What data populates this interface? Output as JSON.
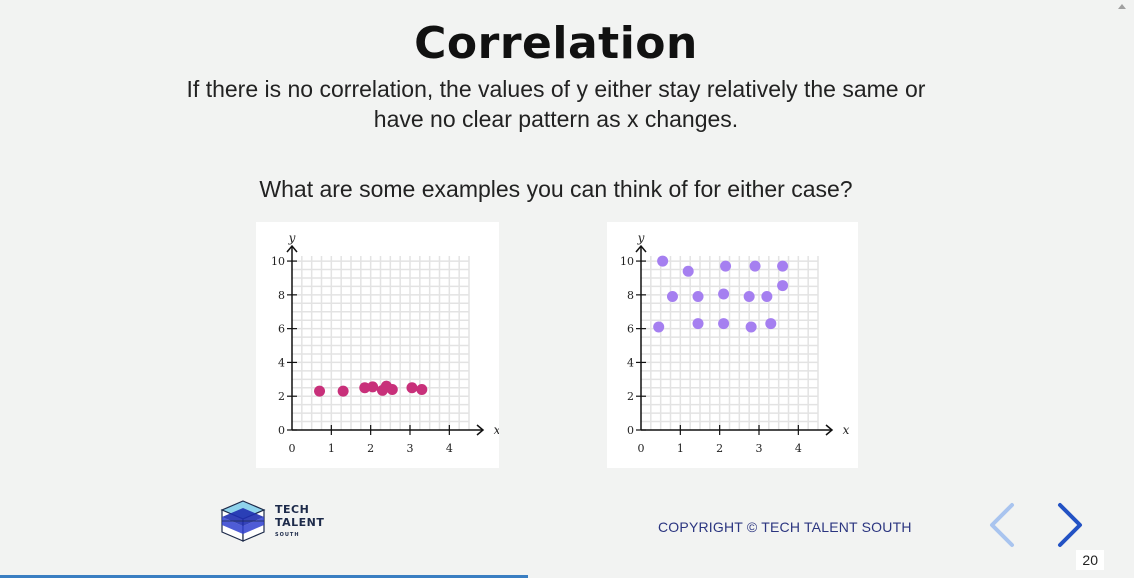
{
  "slide": {
    "title": "Correlation",
    "subtitle": "If there is no correlation, the values of y either stay relatively the same or have no clear pattern as x changes.",
    "question": "What are some examples you can think of for either case?",
    "page_number": "20",
    "copyright": "COPYRIGHT © TECH TALENT SOUTH",
    "progress_fraction": 0.475
  },
  "logo": {
    "line1": "TECH",
    "line2": "TALENT",
    "line3": "SOUTH"
  },
  "nav": {
    "prev_icon": "chevron-left-icon",
    "next_icon": "chevron-right-icon"
  },
  "colors": {
    "left_points": "#c8307a",
    "right_points": "#a57ff0",
    "nav_prev": "#a9c4ef",
    "nav_next": "#2352c4",
    "progress": "#3a7ec2"
  },
  "chart_data": [
    {
      "type": "scatter",
      "xlabel": "x",
      "ylabel": "y",
      "xlim": [
        0,
        4.5
      ],
      "ylim": [
        0,
        10.3
      ],
      "x_ticks": [
        "0",
        "1",
        "2",
        "3",
        "4"
      ],
      "y_ticks": [
        "0",
        "2",
        "4",
        "6",
        "8",
        "10"
      ],
      "grid": true,
      "points": [
        {
          "x": 0.7,
          "y": 2.3
        },
        {
          "x": 1.3,
          "y": 2.3
        },
        {
          "x": 1.85,
          "y": 2.5
        },
        {
          "x": 2.05,
          "y": 2.55
        },
        {
          "x": 2.3,
          "y": 2.35
        },
        {
          "x": 2.4,
          "y": 2.6
        },
        {
          "x": 2.55,
          "y": 2.4
        },
        {
          "x": 3.05,
          "y": 2.5
        },
        {
          "x": 3.3,
          "y": 2.4
        }
      ]
    },
    {
      "type": "scatter",
      "xlabel": "x",
      "ylabel": "y",
      "xlim": [
        0,
        4.5
      ],
      "ylim": [
        0,
        10.3
      ],
      "x_ticks": [
        "0",
        "1",
        "2",
        "3",
        "4"
      ],
      "y_ticks": [
        "0",
        "2",
        "4",
        "6",
        "8",
        "10"
      ],
      "grid": true,
      "points": [
        {
          "x": 0.55,
          "y": 10.0
        },
        {
          "x": 1.2,
          "y": 9.4
        },
        {
          "x": 2.15,
          "y": 9.7
        },
        {
          "x": 2.9,
          "y": 9.7
        },
        {
          "x": 3.6,
          "y": 9.7
        },
        {
          "x": 0.8,
          "y": 7.9
        },
        {
          "x": 1.45,
          "y": 7.9
        },
        {
          "x": 2.1,
          "y": 8.05
        },
        {
          "x": 2.75,
          "y": 7.9
        },
        {
          "x": 3.2,
          "y": 7.9
        },
        {
          "x": 3.6,
          "y": 8.55
        },
        {
          "x": 0.45,
          "y": 6.1
        },
        {
          "x": 1.45,
          "y": 6.3
        },
        {
          "x": 2.1,
          "y": 6.3
        },
        {
          "x": 2.8,
          "y": 6.1
        },
        {
          "x": 3.3,
          "y": 6.3
        }
      ]
    }
  ]
}
